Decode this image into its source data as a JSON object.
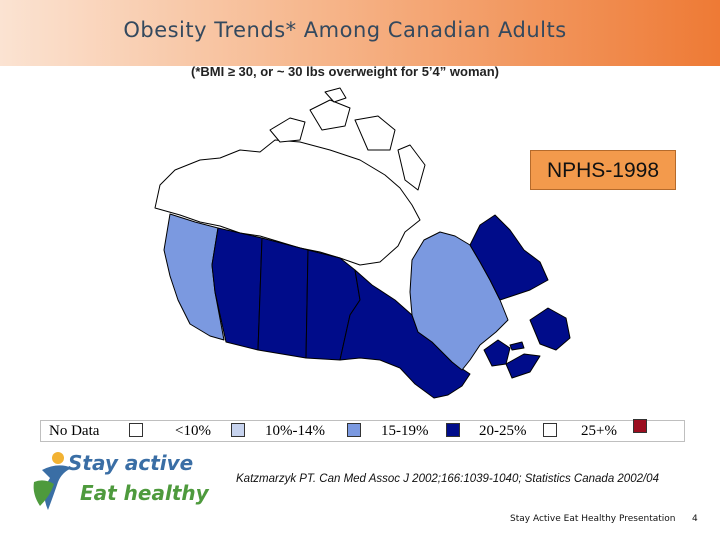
{
  "title": "Obesity Trends* Among Canadian Adults",
  "subtitle": "(*BMI ≥ 30, or ~ 30 lbs overweight for 5’4” woman)",
  "survey_label": "NPHS-1998",
  "colors": {
    "no_data": "#ffffff",
    "lt10": "#c7d3ee",
    "p10_14": "#7b99e0",
    "p15_19": "#000c8a",
    "p20_25": "#ffffff",
    "p25plus": "#9b0d1f",
    "title_bar": "#ee7a35",
    "survey_box": "#f39a4c"
  },
  "legend": {
    "items": [
      {
        "label": "No Data",
        "color": "#ffffff"
      },
      {
        "label": "<10%",
        "color": "#c7d3ee"
      },
      {
        "label": "10%-14%",
        "color": "#7b99e0"
      },
      {
        "label": "15-19%",
        "color": "#000c8a"
      },
      {
        "label": "20-25%",
        "color": "#ffffff"
      },
      {
        "label": "25+%",
        "color": "#9b0d1f"
      }
    ]
  },
  "regions": [
    {
      "name": "Yukon",
      "category": "No Data"
    },
    {
      "name": "Northwest Territories",
      "category": "No Data"
    },
    {
      "name": "Nunavut",
      "category": "No Data"
    },
    {
      "name": "British Columbia",
      "category": "10%-14%"
    },
    {
      "name": "Alberta",
      "category": "15-19%"
    },
    {
      "name": "Saskatchewan",
      "category": "15-19%"
    },
    {
      "name": "Manitoba",
      "category": "15-19%"
    },
    {
      "name": "Ontario",
      "category": "15-19%"
    },
    {
      "name": "Quebec",
      "category": "10%-14%"
    },
    {
      "name": "Newfoundland and Labrador",
      "category": "15-19%"
    },
    {
      "name": "New Brunswick",
      "category": "15-19%"
    },
    {
      "name": "Nova Scotia",
      "category": "15-19%"
    },
    {
      "name": "Prince Edward Island",
      "category": "15-19%"
    }
  ],
  "logo": {
    "line1": "Stay active",
    "line2": "Eat healthy"
  },
  "citation": "Katzmarzyk PT. Can Med Assoc J 2002;166:1039-1040; Statistics Canada 2002/04",
  "footer": "Stay Active Eat Healthy Presentation",
  "page_number": "4"
}
